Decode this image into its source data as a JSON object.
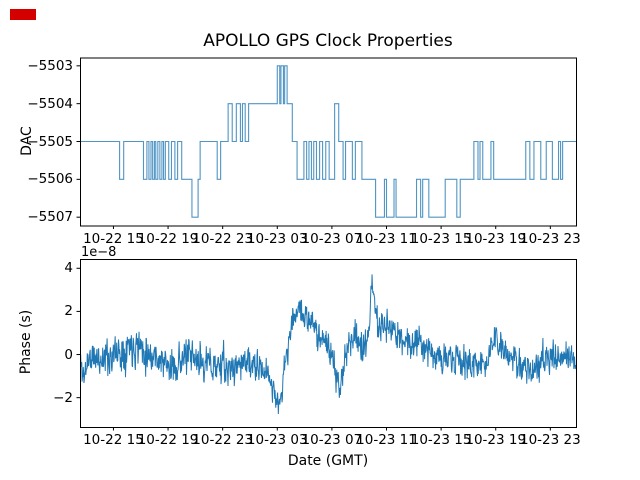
{
  "figure": {
    "title": "APOLLO GPS Clock Properties",
    "background_color": "#ffffff",
    "line_color": "#1f77b4",
    "red_marker_color": "#d40000",
    "text_color": "#000000"
  },
  "chart_data": [
    {
      "type": "line",
      "style": "step-post",
      "title": "APOLLO GPS Clock Properties",
      "ylabel": "DAC",
      "x_unit": "hours since 10-22 00:00 GMT",
      "xlim": [
        12.55,
        48.88
      ],
      "ylim": [
        -5507.22,
        -5502.78
      ],
      "yticks": [
        -5503,
        -5504,
        -5505,
        -5506,
        -5507
      ],
      "ytick_labels": [
        "−5503",
        "−5504",
        "−5505",
        "−5506",
        "−5507"
      ],
      "xtick_hours": [
        15,
        19,
        23,
        27,
        31,
        35,
        39,
        43,
        47
      ],
      "xtick_labels": [
        "10-22 15",
        "10-22 19",
        "10-22 23",
        "10-23 03",
        "10-23 07",
        "10-23 11",
        "10-23 15",
        "10-23 19",
        "10-23 23"
      ],
      "grid": false,
      "legend": null,
      "points": [
        [
          12.57,
          -5505
        ],
        [
          15.45,
          -5506
        ],
        [
          15.75,
          -5505
        ],
        [
          17.2,
          -5506
        ],
        [
          17.45,
          -5505
        ],
        [
          17.6,
          -5506
        ],
        [
          17.75,
          -5505
        ],
        [
          17.87,
          -5506
        ],
        [
          18.0,
          -5505
        ],
        [
          18.1,
          -5506
        ],
        [
          18.25,
          -5505
        ],
        [
          18.4,
          -5506
        ],
        [
          18.55,
          -5505
        ],
        [
          18.67,
          -5506
        ],
        [
          18.8,
          -5505
        ],
        [
          19.05,
          -5506
        ],
        [
          19.25,
          -5505
        ],
        [
          19.5,
          -5506
        ],
        [
          19.7,
          -5505
        ],
        [
          20.0,
          -5506
        ],
        [
          20.75,
          -5507
        ],
        [
          21.2,
          -5506
        ],
        [
          21.35,
          -5505
        ],
        [
          22.6,
          -5506
        ],
        [
          22.85,
          -5505
        ],
        [
          23.4,
          -5504
        ],
        [
          23.7,
          -5505
        ],
        [
          24.0,
          -5504
        ],
        [
          24.3,
          -5505
        ],
        [
          24.45,
          -5504
        ],
        [
          24.65,
          -5505
        ],
        [
          24.9,
          -5504
        ],
        [
          27.0,
          -5503
        ],
        [
          27.18,
          -5504
        ],
        [
          27.27,
          -5503
        ],
        [
          27.45,
          -5504
        ],
        [
          27.54,
          -5503
        ],
        [
          27.72,
          -5504
        ],
        [
          28.1,
          -5505
        ],
        [
          28.45,
          -5506
        ],
        [
          28.95,
          -5505
        ],
        [
          29.15,
          -5506
        ],
        [
          29.32,
          -5505
        ],
        [
          29.5,
          -5506
        ],
        [
          29.67,
          -5505
        ],
        [
          29.87,
          -5506
        ],
        [
          30.1,
          -5505
        ],
        [
          30.32,
          -5506
        ],
        [
          30.55,
          -5505
        ],
        [
          30.8,
          -5506
        ],
        [
          31.2,
          -5504
        ],
        [
          31.5,
          -5505
        ],
        [
          31.82,
          -5506
        ],
        [
          32.0,
          -5505
        ],
        [
          32.5,
          -5506
        ],
        [
          32.72,
          -5505
        ],
        [
          33.2,
          -5506
        ],
        [
          34.2,
          -5507
        ],
        [
          34.85,
          -5506
        ],
        [
          35.0,
          -5507
        ],
        [
          35.55,
          -5506
        ],
        [
          35.7,
          -5507
        ],
        [
          37.2,
          -5506
        ],
        [
          37.5,
          -5507
        ],
        [
          37.65,
          -5506
        ],
        [
          38.1,
          -5507
        ],
        [
          39.3,
          -5506
        ],
        [
          40.15,
          -5507
        ],
        [
          40.4,
          -5506
        ],
        [
          41.4,
          -5505
        ],
        [
          41.7,
          -5506
        ],
        [
          41.85,
          -5505
        ],
        [
          42.05,
          -5506
        ],
        [
          42.65,
          -5505
        ],
        [
          42.85,
          -5506
        ],
        [
          45.2,
          -5505
        ],
        [
          45.5,
          -5506
        ],
        [
          45.8,
          -5505
        ],
        [
          46.3,
          -5506
        ],
        [
          46.7,
          -5505
        ],
        [
          47.15,
          -5506
        ],
        [
          47.6,
          -5505
        ],
        [
          47.75,
          -5506
        ],
        [
          47.9,
          -5505
        ],
        [
          48.88,
          -5505
        ]
      ]
    },
    {
      "type": "line",
      "style": "noisy",
      "ylabel": "Phase (s)",
      "xlabel": "Date (GMT)",
      "offset_text": "1e−8",
      "y_scale": 1e-08,
      "xlim": [
        12.55,
        48.88
      ],
      "ylim": [
        -3.36,
        4.43
      ],
      "yticks": [
        4,
        2,
        0,
        -2
      ],
      "ytick_labels": [
        "4",
        "2",
        "0",
        "−2"
      ],
      "xtick_hours": [
        15,
        19,
        23,
        27,
        31,
        35,
        39,
        43,
        47
      ],
      "xtick_labels": [
        "10-22 15",
        "10-22 19",
        "10-22 23",
        "10-23 03",
        "10-23 07",
        "10-23 11",
        "10-23 15",
        "10-23 19",
        "10-23 23"
      ],
      "grid": false,
      "legend": null,
      "anchors": [
        [
          12.57,
          -0.3,
          0.5
        ],
        [
          12.85,
          -1.1,
          0.45
        ],
        [
          13.1,
          -0.2,
          0.5
        ],
        [
          14.0,
          -0.2,
          0.55
        ],
        [
          15.0,
          0.0,
          0.55
        ],
        [
          15.7,
          0.2,
          0.6
        ],
        [
          16.1,
          0.5,
          0.65
        ],
        [
          16.8,
          0.5,
          0.6
        ],
        [
          17.5,
          0.1,
          0.55
        ],
        [
          18.2,
          -0.1,
          0.5
        ],
        [
          19.2,
          -0.7,
          0.5
        ],
        [
          19.8,
          -0.3,
          0.5
        ],
        [
          20.3,
          -0.1,
          0.55
        ],
        [
          21.0,
          -0.3,
          0.5
        ],
        [
          21.5,
          -0.3,
          0.55
        ],
        [
          22.2,
          -0.5,
          0.5
        ],
        [
          23.0,
          -0.5,
          0.55
        ],
        [
          23.5,
          -0.8,
          0.5
        ],
        [
          24.2,
          -0.4,
          0.5
        ],
        [
          24.7,
          -0.3,
          0.5
        ],
        [
          25.2,
          -0.6,
          0.45
        ],
        [
          25.8,
          -0.7,
          0.45
        ],
        [
          26.3,
          -0.9,
          0.45
        ],
        [
          26.8,
          -1.6,
          0.5
        ],
        [
          27.1,
          -2.6,
          0.3
        ],
        [
          27.35,
          -1.5,
          0.4
        ],
        [
          27.8,
          0.5,
          0.5
        ],
        [
          28.3,
          1.9,
          0.4
        ],
        [
          28.6,
          2.3,
          0.35
        ],
        [
          28.9,
          1.8,
          0.4
        ],
        [
          29.3,
          1.5,
          0.4
        ],
        [
          29.8,
          1.2,
          0.45
        ],
        [
          30.3,
          0.8,
          0.45
        ],
        [
          30.9,
          0.2,
          0.5
        ],
        [
          31.3,
          -1.2,
          0.5
        ],
        [
          31.55,
          -1.6,
          0.45
        ],
        [
          31.8,
          -0.6,
          0.5
        ],
        [
          32.3,
          0.6,
          0.5
        ],
        [
          32.6,
          1.1,
          0.5
        ],
        [
          33.0,
          0.6,
          0.5
        ],
        [
          33.4,
          0.2,
          0.5
        ],
        [
          33.75,
          0.9,
          0.4
        ],
        [
          33.95,
          3.7,
          0.3
        ],
        [
          34.1,
          2.8,
          0.45
        ],
        [
          34.35,
          1.1,
          0.5
        ],
        [
          34.7,
          1.4,
          0.5
        ],
        [
          35.2,
          1.2,
          0.5
        ],
        [
          35.8,
          0.9,
          0.5
        ],
        [
          36.3,
          0.6,
          0.5
        ],
        [
          36.8,
          0.5,
          0.5
        ],
        [
          37.4,
          0.8,
          0.5
        ],
        [
          37.9,
          0.4,
          0.5
        ],
        [
          38.5,
          0.0,
          0.5
        ],
        [
          39.2,
          -0.2,
          0.5
        ],
        [
          39.8,
          -0.3,
          0.5
        ],
        [
          40.4,
          -0.4,
          0.5
        ],
        [
          41.0,
          -0.3,
          0.5
        ],
        [
          41.7,
          -0.5,
          0.5
        ],
        [
          42.2,
          -0.6,
          0.5
        ],
        [
          42.6,
          0.4,
          0.5
        ],
        [
          42.9,
          0.7,
          0.45
        ],
        [
          43.4,
          0.2,
          0.5
        ],
        [
          44.0,
          -0.2,
          0.5
        ],
        [
          44.6,
          -0.3,
          0.5
        ],
        [
          45.2,
          -0.5,
          0.5
        ],
        [
          45.9,
          -0.9,
          0.45
        ],
        [
          46.4,
          -0.3,
          0.5
        ],
        [
          47.0,
          -0.2,
          0.5
        ],
        [
          47.6,
          -0.3,
          0.5
        ],
        [
          48.1,
          -0.1,
          0.5
        ],
        [
          48.5,
          -0.3,
          0.45
        ],
        [
          48.88,
          -0.5,
          0.4
        ]
      ],
      "noise": {
        "seed": 11,
        "n_points": 1350,
        "ar": 0.25,
        "gain": 2.0
      }
    }
  ]
}
